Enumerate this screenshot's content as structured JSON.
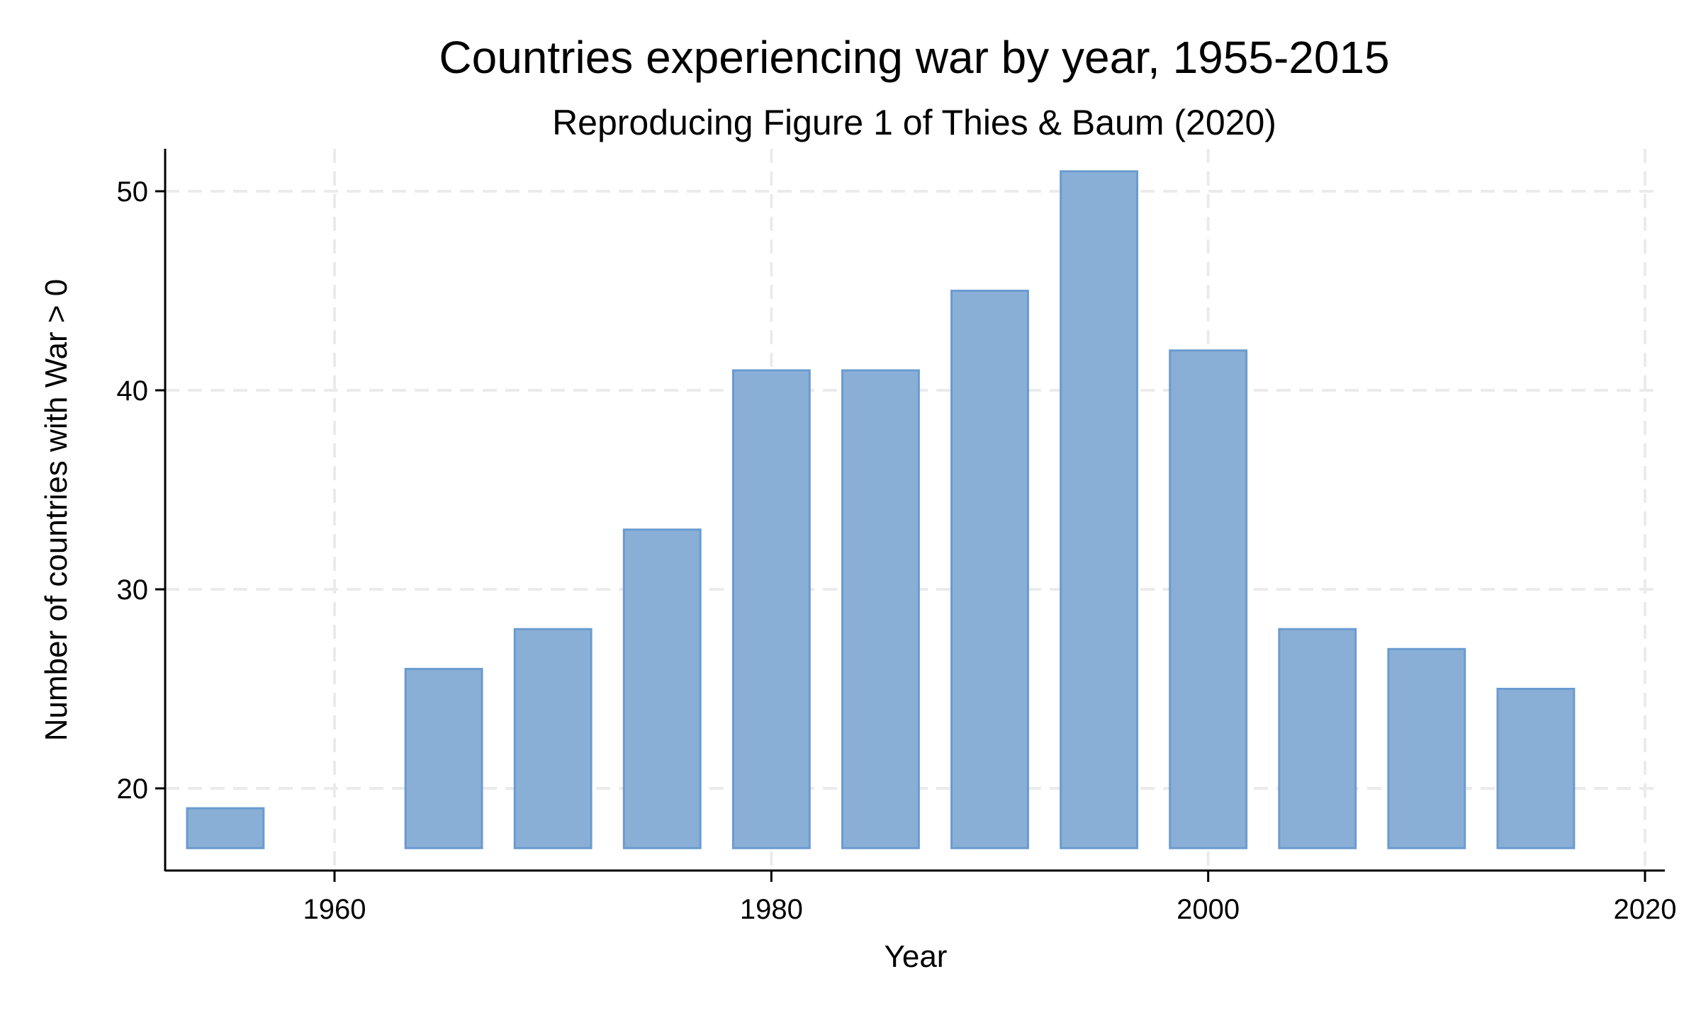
{
  "chart_data": {
    "type": "bar",
    "title": "Countries experiencing war by year, 1955-2015",
    "subtitle": "Reproducing Figure 1 of Thies & Baum (2020)",
    "xlabel": "Year",
    "ylabel": "Number of countries with War > 0",
    "x": [
      1955,
      1960,
      1965,
      1970,
      1975,
      1980,
      1985,
      1990,
      1995,
      2000,
      2005,
      2010,
      2015
    ],
    "values": [
      19,
      17,
      26,
      28,
      33,
      41,
      41,
      45,
      51,
      42,
      28,
      27,
      25
    ],
    "bar_base": 17,
    "xlim": [
      1951,
      2021
    ],
    "ylim": [
      16,
      52
    ],
    "xticks": [
      1960,
      1980,
      2000,
      2020
    ],
    "yticks": [
      20,
      30,
      40,
      50
    ],
    "grid": true,
    "colors": {
      "bar_fill": "#8aafd6",
      "bar_edge": "#6a9bd0",
      "grid": "#ebebeb"
    }
  }
}
